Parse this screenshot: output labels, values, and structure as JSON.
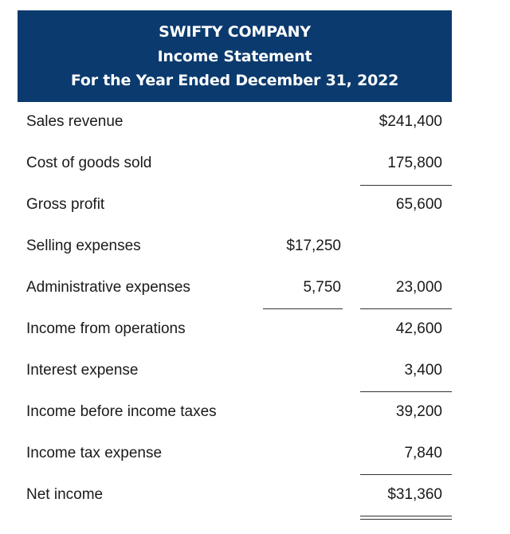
{
  "header": {
    "company": "SWIFTY COMPANY",
    "statement": "Income Statement",
    "period": "For the Year Ended December 31, 2022"
  },
  "rows": [
    {
      "label": "Sales revenue",
      "mid": "",
      "right": "$241,400"
    },
    {
      "label": "Cost of goods sold",
      "mid": "",
      "right": "175,800"
    },
    {
      "label": "Gross profit",
      "mid": "",
      "right": "65,600"
    },
    {
      "label": "Selling expenses",
      "mid": "$17,250",
      "right": ""
    },
    {
      "label": "Administrative expenses",
      "mid": "5,750",
      "right": "23,000"
    },
    {
      "label": "Income from operations",
      "mid": "",
      "right": "42,600"
    },
    {
      "label": "Interest expense",
      "mid": "",
      "right": "3,400"
    },
    {
      "label": "Income before income taxes",
      "mid": "",
      "right": "39,200"
    },
    {
      "label": "Income tax expense",
      "mid": "",
      "right": "7,840"
    },
    {
      "label": "Net income",
      "mid": "",
      "right": "$31,360"
    }
  ]
}
